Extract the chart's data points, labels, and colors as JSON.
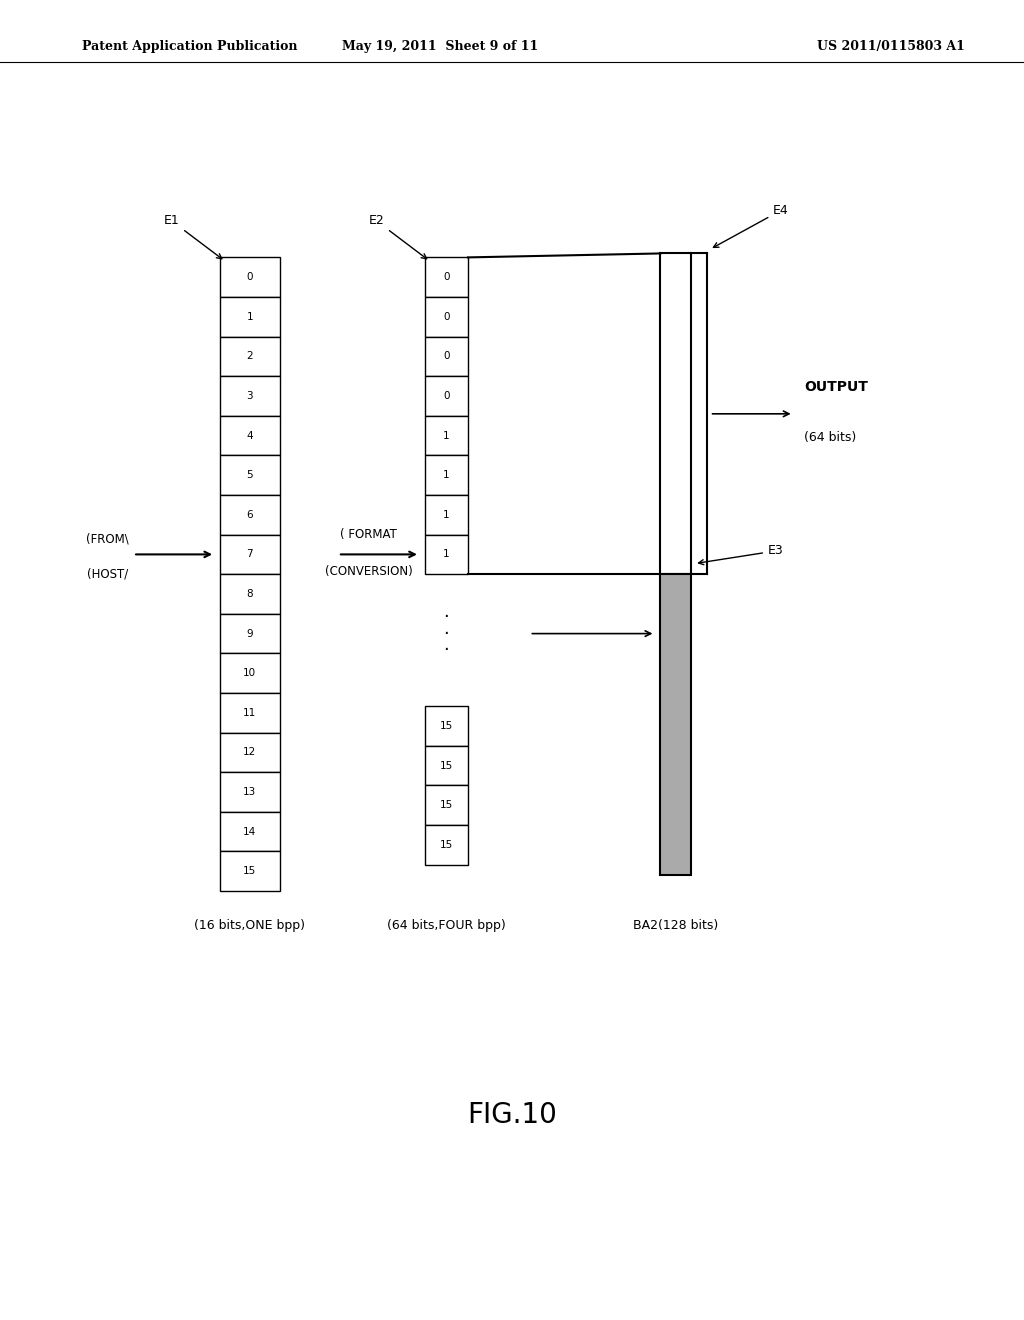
{
  "header_left": "Patent Application Publication",
  "header_mid": "May 19, 2011  Sheet 9 of 11",
  "header_right": "US 2011/0115803 A1",
  "figure_label": "FIG.10",
  "bg_color": "#ffffff",
  "col1_label": "(16 bits,ONE bpp)",
  "col2_label": "(64 bits,FOUR bpp)",
  "col3_label": "BA2(128 bits)",
  "e1_label": "E1",
  "e2_label": "E2",
  "e3_label": "E3",
  "e4_label": "E4",
  "col1_values": [
    "0",
    "1",
    "2",
    "3",
    "4",
    "5",
    "6",
    "7",
    "8",
    "9",
    "10",
    "11",
    "12",
    "13",
    "14",
    "15"
  ],
  "col2_top_values": [
    "0",
    "0",
    "0",
    "0",
    "1",
    "1",
    "1",
    "1"
  ],
  "col2_bot_values": [
    "15",
    "15",
    "15",
    "15"
  ],
  "output_label": "OUTPUT\n(64 bits)",
  "from_host_label": "(FROM\\\nHOST/",
  "format_conv_label_1": "( FORMAT",
  "format_conv_label_2": "(CONVERSION)",
  "line_color": "#000000",
  "gray_color": "#aaaaaa"
}
